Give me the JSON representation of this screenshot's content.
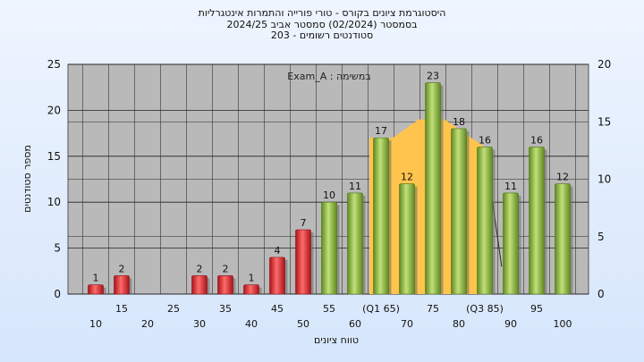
{
  "titles": {
    "line1": "היסטוגרמת ציונים בקורס - טורי פורייה והתמרות אינטגרליות",
    "line2": "בסמסטר  (02/2024)  סמסטר אביב 2024/25",
    "line3": "סטודנטים רשומים - 203"
  },
  "chart_data": {
    "type": "bar",
    "title": "היסטוגרמת ציונים בקורס - טורי פורייה והתמרות אינטגרליות",
    "xlabel": "טווח ציונים",
    "ylabel": "מספר סטודנטים",
    "annotation": "Exam_A : במשימה",
    "grid": true,
    "ylim": [
      0,
      25
    ],
    "y2lim": [
      0,
      20
    ],
    "yticks": [
      0,
      5,
      10,
      15,
      20,
      25
    ],
    "y2ticks": [
      0,
      5,
      10,
      15,
      20
    ],
    "categories": [
      "10",
      "15",
      "20",
      "25",
      "30",
      "35",
      "40",
      "45",
      "50",
      "55",
      "60",
      "65",
      "70",
      "75",
      "80",
      "85",
      "90",
      "95",
      "100"
    ],
    "xtick_labels": [
      "10",
      "15",
      "20",
      "25",
      "30",
      "35",
      "40",
      "45",
      "50",
      "55",
      "60",
      "(Q1 65)",
      "70",
      "75",
      "80",
      "(Q3 85)",
      "90",
      "95",
      "100"
    ],
    "values": [
      1,
      2,
      0,
      0,
      2,
      2,
      1,
      4,
      7,
      10,
      11,
      17,
      12,
      23,
      18,
      16,
      11,
      16,
      12
    ],
    "data_labels": [
      "1",
      "2",
      "",
      "",
      "2",
      "2",
      "1",
      "4",
      "7",
      "10",
      "11",
      "17",
      "12",
      "23",
      "18",
      "16",
      "11",
      "16",
      "12"
    ],
    "colors": {
      "fail": "#e0262a",
      "pass": "#8ab83a",
      "quartile_band": "#ffc44d"
    },
    "quartile_band": {
      "x": [
        65,
        70,
        75,
        80,
        85
      ],
      "y": [
        17,
        17,
        19,
        19,
        16
      ]
    }
  }
}
